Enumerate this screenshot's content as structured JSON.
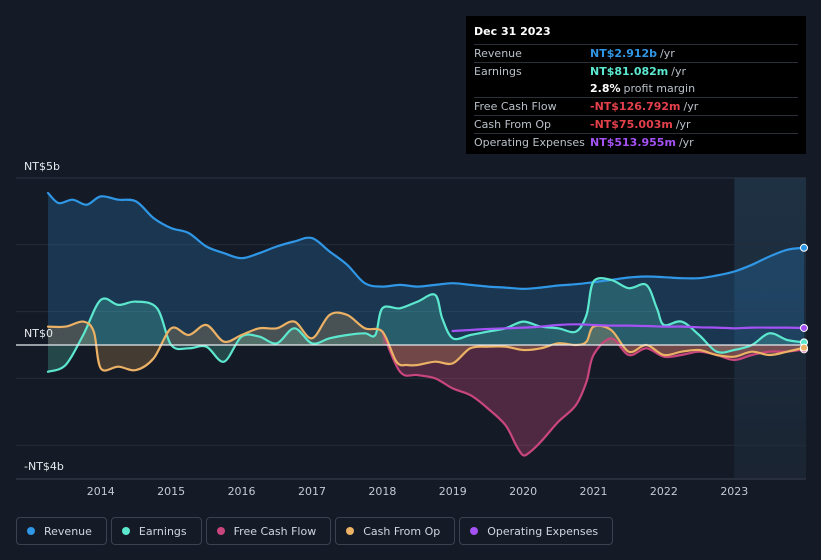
{
  "tooltip": {
    "date": "Dec 31 2023",
    "rows": [
      {
        "label": "Revenue",
        "value": "NT$2.912b",
        "unit": "/yr",
        "color": "#2f97e6"
      },
      {
        "label": "Earnings",
        "value": "NT$81.082m",
        "unit": "/yr",
        "color": "#5ce8cf"
      },
      {
        "label": "",
        "value": "2.8%",
        "unit": "profit margin",
        "color": "#ffffff"
      },
      {
        "label": "Free Cash Flow",
        "value": "-NT$126.792m",
        "unit": "/yr",
        "color": "#e3404c"
      },
      {
        "label": "Cash From Op",
        "value": "-NT$75.003m",
        "unit": "/yr",
        "color": "#e3404c"
      },
      {
        "label": "Operating Expenses",
        "value": "NT$513.955m",
        "unit": "/yr",
        "color": "#a552f5"
      }
    ]
  },
  "legend": [
    {
      "label": "Revenue",
      "color": "#2f97e6"
    },
    {
      "label": "Earnings",
      "color": "#5ce8cf"
    },
    {
      "label": "Free Cash Flow",
      "color": "#c9467d"
    },
    {
      "label": "Cash From Op",
      "color": "#ebb164"
    },
    {
      "label": "Operating Expenses",
      "color": "#a552f5"
    }
  ],
  "chart_data": {
    "type": "area",
    "y_tick_labels": [
      "NT$5b",
      "NT$0",
      "-NT$4b"
    ],
    "ylim": [
      -4,
      5
    ],
    "y_unit": "NT$ billions",
    "xlim": [
      2013.25,
      2023.99
    ],
    "x_ticks": [
      "2014",
      "2015",
      "2016",
      "2017",
      "2018",
      "2019",
      "2020",
      "2021",
      "2022",
      "2023"
    ],
    "grid": true,
    "legend_position": "bottom",
    "highlight_from": 2023.0,
    "series": [
      {
        "name": "Revenue",
        "color": "#2f97e6",
        "x": [
          2013.25,
          2013.4,
          2013.6,
          2013.8,
          2014.0,
          2014.25,
          2014.5,
          2014.75,
          2015.0,
          2015.25,
          2015.5,
          2015.75,
          2016.0,
          2016.25,
          2016.5,
          2016.75,
          2017.0,
          2017.25,
          2017.5,
          2017.75,
          2018.0,
          2018.25,
          2018.5,
          2018.75,
          2019.0,
          2019.25,
          2019.5,
          2019.75,
          2020.0,
          2020.25,
          2020.5,
          2020.75,
          2021.0,
          2021.25,
          2021.5,
          2021.75,
          2022.0,
          2022.25,
          2022.5,
          2022.75,
          2023.0,
          2023.25,
          2023.5,
          2023.75,
          2023.99
        ],
        "y": [
          4.55,
          4.25,
          4.35,
          4.2,
          4.45,
          4.35,
          4.3,
          3.8,
          3.5,
          3.35,
          2.95,
          2.75,
          2.6,
          2.75,
          2.95,
          3.1,
          3.2,
          2.8,
          2.4,
          1.85,
          1.75,
          1.8,
          1.75,
          1.8,
          1.85,
          1.8,
          1.75,
          1.72,
          1.68,
          1.72,
          1.78,
          1.82,
          1.88,
          1.95,
          2.02,
          2.05,
          2.03,
          2.0,
          2.0,
          2.08,
          2.2,
          2.4,
          2.65,
          2.85,
          2.91
        ]
      },
      {
        "name": "Earnings",
        "color": "#5ce8cf",
        "x": [
          2013.25,
          2013.5,
          2013.75,
          2014.0,
          2014.25,
          2014.5,
          2014.8,
          2015.0,
          2015.25,
          2015.5,
          2015.75,
          2016.0,
          2016.25,
          2016.5,
          2016.75,
          2017.0,
          2017.25,
          2017.5,
          2017.75,
          2017.9,
          2018.0,
          2018.25,
          2018.5,
          2018.75,
          2018.85,
          2019.0,
          2019.25,
          2019.5,
          2019.75,
          2020.0,
          2020.25,
          2020.5,
          2020.75,
          2020.9,
          2021.0,
          2021.25,
          2021.5,
          2021.75,
          2021.9,
          2022.0,
          2022.25,
          2022.5,
          2022.75,
          2023.0,
          2023.25,
          2023.5,
          2023.75,
          2023.99
        ],
        "y": [
          -0.8,
          -0.6,
          0.3,
          1.35,
          1.2,
          1.3,
          1.1,
          0.0,
          -0.1,
          -0.05,
          -0.5,
          0.25,
          0.25,
          0.05,
          0.5,
          0.05,
          0.2,
          0.3,
          0.35,
          0.3,
          1.1,
          1.1,
          1.3,
          1.5,
          0.8,
          0.2,
          0.3,
          0.4,
          0.5,
          0.7,
          0.55,
          0.5,
          0.4,
          0.9,
          1.9,
          1.95,
          1.7,
          1.8,
          1.1,
          0.6,
          0.7,
          0.3,
          -0.2,
          -0.15,
          0.0,
          0.35,
          0.15,
          0.08
        ]
      },
      {
        "name": "Free Cash Flow",
        "color": "#c9467d",
        "x": [
          2018.0,
          2018.25,
          2018.5,
          2018.75,
          2019.0,
          2019.25,
          2019.5,
          2019.75,
          2019.9,
          2020.0,
          2020.1,
          2020.25,
          2020.5,
          2020.75,
          2020.9,
          2021.0,
          2021.25,
          2021.5,
          2021.75,
          2022.0,
          2022.25,
          2022.5,
          2022.75,
          2023.0,
          2023.25,
          2023.5,
          2023.75,
          2023.99
        ],
        "y": [
          0.4,
          -0.8,
          -0.9,
          -1.0,
          -1.3,
          -1.5,
          -1.9,
          -2.4,
          -3.0,
          -3.3,
          -3.2,
          -2.9,
          -2.3,
          -1.8,
          -1.1,
          -0.3,
          0.2,
          -0.3,
          -0.1,
          -0.35,
          -0.3,
          -0.2,
          -0.3,
          -0.45,
          -0.3,
          -0.2,
          -0.2,
          -0.13
        ]
      },
      {
        "name": "Cash From Op",
        "color": "#ebb164",
        "x": [
          2013.25,
          2013.5,
          2013.75,
          2013.9,
          2014.0,
          2014.25,
          2014.5,
          2014.75,
          2015.0,
          2015.25,
          2015.5,
          2015.75,
          2016.0,
          2016.25,
          2016.5,
          2016.75,
          2017.0,
          2017.25,
          2017.5,
          2017.75,
          2018.0,
          2018.2,
          2018.35,
          2018.5,
          2018.75,
          2019.0,
          2019.25,
          2019.5,
          2019.75,
          2020.0,
          2020.25,
          2020.5,
          2020.75,
          2020.9,
          2021.0,
          2021.25,
          2021.5,
          2021.75,
          2022.0,
          2022.25,
          2022.5,
          2022.75,
          2023.0,
          2023.25,
          2023.5,
          2023.75,
          2023.99
        ],
        "y": [
          0.55,
          0.55,
          0.7,
          0.4,
          -0.7,
          -0.65,
          -0.75,
          -0.4,
          0.5,
          0.3,
          0.6,
          0.1,
          0.3,
          0.5,
          0.5,
          0.7,
          0.2,
          0.9,
          0.9,
          0.5,
          0.4,
          -0.5,
          -0.6,
          -0.6,
          -0.5,
          -0.55,
          -0.1,
          -0.05,
          -0.05,
          -0.15,
          -0.1,
          0.05,
          0.0,
          0.1,
          0.55,
          0.45,
          -0.2,
          0.0,
          -0.3,
          -0.2,
          -0.15,
          -0.3,
          -0.35,
          -0.2,
          -0.3,
          -0.2,
          -0.08
        ]
      },
      {
        "name": "Operating Expenses",
        "color": "#a552f5",
        "x": [
          2019.0,
          2019.25,
          2019.5,
          2019.75,
          2020.0,
          2020.25,
          2020.5,
          2020.75,
          2021.0,
          2021.25,
          2021.5,
          2021.75,
          2022.0,
          2022.25,
          2022.5,
          2022.75,
          2023.0,
          2023.25,
          2023.5,
          2023.75,
          2023.99
        ],
        "y": [
          0.42,
          0.45,
          0.48,
          0.5,
          0.52,
          0.55,
          0.6,
          0.62,
          0.6,
          0.58,
          0.58,
          0.57,
          0.55,
          0.55,
          0.53,
          0.52,
          0.5,
          0.52,
          0.52,
          0.52,
          0.51
        ]
      }
    ]
  }
}
